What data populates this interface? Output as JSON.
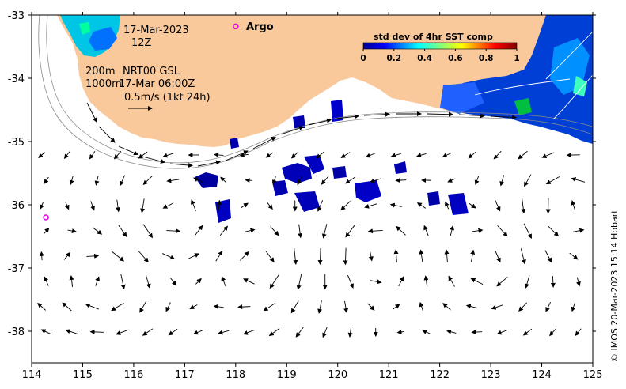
{
  "map": {
    "date": "17-Mar-2023",
    "time": "12Z",
    "legend_title": "std dev of 4hr SST comp",
    "legend_ticks": [
      "0",
      "0.2",
      "0.4",
      "0.6",
      "0.8",
      "1"
    ],
    "annotation_200m": "200m",
    "annotation_model": "NRT00 GSL",
    "annotation_1000m": "1000m",
    "annotation_fieldtime": "17-Mar 06:00Z",
    "scale_label": "0.5m/s (1kt 24h)",
    "argo_label": "Argo",
    "credit": "© IMOS 20-Mar-2023 15:14 Hobart",
    "colors": {
      "land": "#f9c89b",
      "ocean": "#ffffff",
      "argo_marker": "#e000e0"
    }
  },
  "chart_data": {
    "type": "map",
    "xlim": [
      114,
      125
    ],
    "ylim": [
      -38.5,
      -33
    ],
    "x_ticks": [
      "114",
      "115",
      "116",
      "117",
      "118",
      "119",
      "120",
      "121",
      "122",
      "123",
      "124",
      "125"
    ],
    "y_ticks": [
      "-33",
      "-34",
      "-35",
      "-36",
      "-37",
      "-38"
    ],
    "argo_floats": [
      {
        "lon": 118.0,
        "lat": -33.18
      },
      {
        "lon": 114.28,
        "lat": -36.2
      }
    ]
  }
}
